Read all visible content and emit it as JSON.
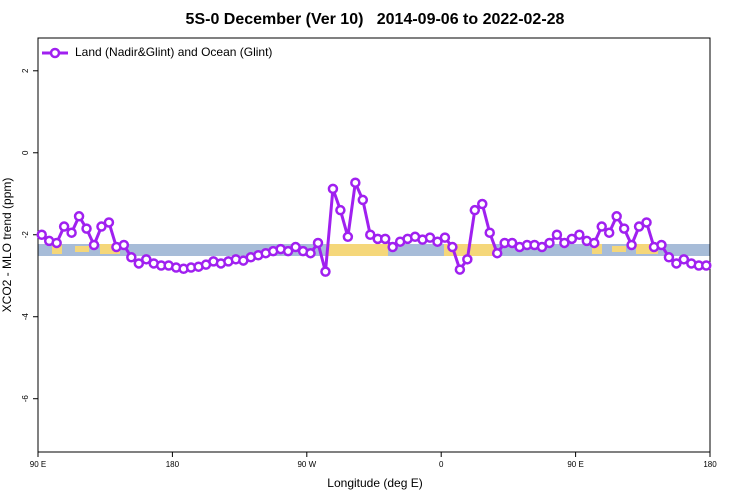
{
  "chart_data": {
    "type": "line",
    "title": "5S-0 December (Ver 10)   2014-09-06 to 2022-02-28",
    "xlabel": "Longitude (deg E)",
    "ylabel": "XCO2 - MLO trend (ppm)",
    "xlim": [
      90,
      540
    ],
    "ylim": [
      -7.3,
      2.8
    ],
    "xticks": [
      {
        "value": 90,
        "label": "90 E"
      },
      180,
      {
        "value": 270,
        "label": "90 W"
      },
      {
        "value": 360,
        "label": "0"
      },
      {
        "value": 450,
        "label": "90 E"
      },
      {
        "value": 540,
        "label": "180"
      }
    ],
    "yticks": [
      2,
      0,
      -2,
      -4,
      -6
    ],
    "legend": "top-left",
    "x": [
      92.5,
      97.5,
      102.5,
      107.5,
      112.5,
      117.5,
      122.5,
      127.5,
      132.5,
      137.5,
      142.5,
      147.5,
      152.5,
      157.5,
      162.5,
      167.5,
      172.5,
      177.5,
      182.5,
      187.5,
      192.5,
      197.5,
      202.5,
      207.5,
      212.5,
      217.5,
      222.5,
      227.5,
      232.5,
      237.5,
      242.5,
      247.5,
      252.5,
      257.5,
      262.5,
      267.5,
      272.5,
      277.5,
      282.5,
      287.5,
      292.5,
      297.5,
      302.5,
      307.5,
      312.5,
      317.5,
      322.5,
      327.5,
      332.5,
      337.5,
      342.5,
      347.5,
      352.5,
      357.5,
      362.5,
      367.5,
      372.5,
      377.5,
      382.5,
      387.5,
      392.5,
      397.5,
      402.5,
      407.5,
      412.5,
      417.5,
      422.5,
      427.5,
      432.5,
      437.5,
      442.5,
      447.5,
      452.5,
      457.5,
      462.5,
      467.5,
      472.5,
      477.5,
      482.5,
      487.5,
      492.5,
      497.5,
      502.5,
      507.5,
      512.5,
      517.5,
      522.5,
      527.5,
      532.5,
      537.5
    ],
    "series": [
      {
        "name": "Land (Nadir&Glint) and Ocean (Glint)",
        "color": "#a020f0",
        "values": [
          -2.0,
          -2.15,
          -2.2,
          -1.8,
          -1.95,
          -1.55,
          -1.85,
          -2.25,
          -1.8,
          -1.7,
          -2.3,
          -2.25,
          -2.55,
          -2.7,
          -2.6,
          -2.7,
          -2.75,
          -2.75,
          -2.8,
          -2.83,
          -2.8,
          -2.78,
          -2.73,
          -2.65,
          -2.7,
          -2.65,
          -2.6,
          -2.63,
          -2.55,
          -2.5,
          -2.45,
          -2.4,
          -2.35,
          -2.4,
          -2.3,
          -2.4,
          -2.45,
          -2.2,
          -2.9,
          -0.88,
          -1.4,
          -2.05,
          -0.73,
          -1.15,
          -2.0,
          -2.1,
          -2.1,
          -2.3,
          -2.17,
          -2.1,
          -2.05,
          -2.12,
          -2.07,
          -2.17,
          -2.07,
          -2.3,
          -2.85,
          -2.6,
          -1.4,
          -1.25,
          -1.95,
          -2.45,
          -2.2,
          -2.2,
          -2.3,
          -2.25,
          -2.25,
          -2.3,
          -2.2,
          -2.0,
          -2.2,
          -2.1,
          -2.0,
          -2.15,
          -2.2,
          -1.8,
          -1.95,
          -1.55,
          -1.85,
          -2.25,
          -1.8,
          -1.7,
          -2.3,
          -2.25,
          -2.55,
          -2.7,
          -2.6,
          -2.7,
          -2.75,
          -2.75
        ]
      }
    ]
  }
}
